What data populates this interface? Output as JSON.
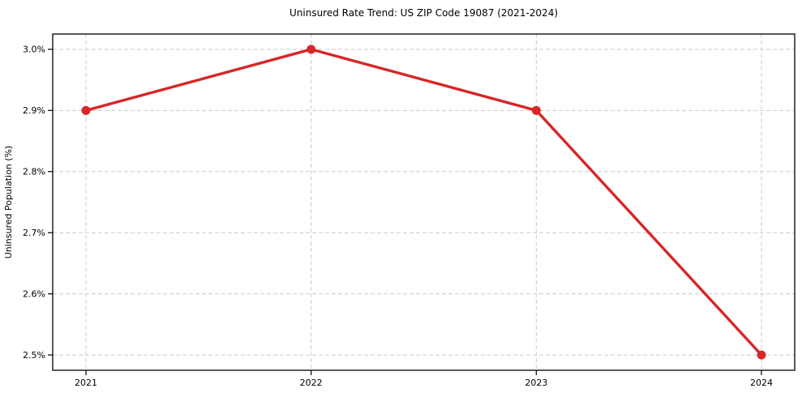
{
  "chart_data": {
    "type": "line",
    "title": "Uninsured Rate Trend: US ZIP Code 19087 (2021-2024)",
    "xlabel": "",
    "ylabel": "Uninsured Population (%)",
    "x_categories": [
      "2021",
      "2022",
      "2023",
      "2024"
    ],
    "values": [
      2.9,
      3.0,
      2.9,
      2.5
    ],
    "point_labels": [
      "2.9%",
      "3.0%",
      "2.9%",
      "2.5%"
    ],
    "y_ticks": [
      2.5,
      2.6,
      2.7,
      2.8,
      2.9,
      3.0
    ],
    "y_tick_labels": [
      "2.5%",
      "2.6%",
      "2.7%",
      "2.8%",
      "2.9%",
      "3.0%"
    ],
    "ylim": [
      2.475,
      3.025
    ],
    "grid": true,
    "grid_style": "dashed",
    "legend_position": "none",
    "colors": {
      "line": "#d62728",
      "marker": "#d62728",
      "grid": "#cccccc",
      "axis": "#000000",
      "text": "#000000",
      "background": "#ffffff"
    }
  }
}
